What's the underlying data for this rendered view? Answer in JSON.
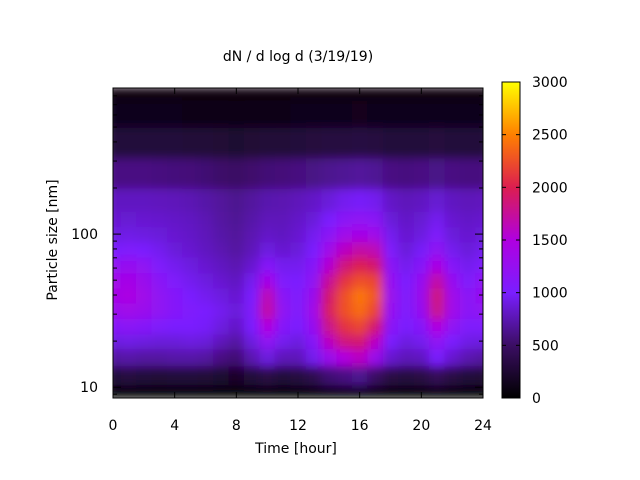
{
  "chart_data": {
    "type": "heatmap",
    "title": "dN / d log d (3/19/19)",
    "xlabel": "Time [hour]",
    "ylabel": "Particle size [nm]",
    "xlim": [
      0,
      24
    ],
    "ylim": [
      8.5,
      900
    ],
    "y_scale": "log",
    "x_ticks": [
      "0",
      "4",
      "8",
      "12",
      "16",
      "20",
      "24"
    ],
    "y_ticks": [
      "10",
      "100"
    ],
    "colorbar": {
      "range": [
        0,
        3000
      ],
      "ticks": [
        "0",
        "500",
        "1000",
        "1500",
        "2000",
        "2500",
        "3000"
      ],
      "palette": [
        "#000000",
        "#3b0e63",
        "#7a1eff",
        "#b000e0",
        "#dc1e50",
        "#ff8000",
        "#ffff00"
      ]
    },
    "x_hours": [
      0,
      1,
      2,
      3,
      4,
      5,
      6,
      7,
      8,
      9,
      10,
      11,
      12,
      13,
      14,
      15,
      16,
      17,
      18,
      19,
      20,
      21,
      22,
      23,
      24
    ],
    "size_bins_nm": [
      9,
      12,
      16,
      20,
      25,
      32,
      40,
      50,
      63,
      80,
      100,
      126,
      160,
      250,
      400,
      630,
      900
    ],
    "values": [
      [
        0,
        0,
        0,
        0,
        0,
        0,
        0,
        0,
        0,
        0,
        0,
        0,
        0,
        0,
        0,
        0,
        0,
        0,
        0,
        0,
        0,
        0,
        0,
        0,
        0
      ],
      [
        300,
        320,
        300,
        280,
        300,
        300,
        280,
        250,
        220,
        300,
        350,
        300,
        320,
        400,
        550,
        600,
        650,
        500,
        350,
        320,
        350,
        450,
        350,
        300,
        280
      ],
      [
        700,
        720,
        700,
        700,
        720,
        720,
        700,
        600,
        550,
        750,
        900,
        780,
        780,
        950,
        1300,
        1500,
        1600,
        1300,
        850,
        780,
        800,
        1000,
        850,
        750,
        700
      ],
      [
        900,
        920,
        900,
        880,
        880,
        900,
        880,
        780,
        700,
        900,
        1200,
        950,
        900,
        1100,
        1600,
        1850,
        1900,
        1600,
        1000,
        900,
        950,
        1200,
        1000,
        920,
        900
      ],
      [
        1100,
        1150,
        1100,
        1050,
        1000,
        1000,
        980,
        900,
        820,
        1000,
        1500,
        1100,
        1000,
        1250,
        1800,
        2100,
        2200,
        1900,
        1150,
        1000,
        1100,
        1500,
        1200,
        1050,
        1050
      ],
      [
        1300,
        1350,
        1300,
        1200,
        1100,
        1050,
        1000,
        950,
        880,
        1050,
        1700,
        1200,
        1050,
        1350,
        1950,
        2250,
        2400,
        2200,
        1250,
        1050,
        1250,
        1800,
        1350,
        1150,
        1200
      ],
      [
        1400,
        1450,
        1350,
        1200,
        1100,
        1000,
        950,
        900,
        850,
        1000,
        1650,
        1150,
        1050,
        1300,
        1900,
        2250,
        2450,
        2300,
        1300,
        1050,
        1300,
        1850,
        1350,
        1150,
        1250
      ],
      [
        1350,
        1400,
        1300,
        1150,
        1050,
        950,
        900,
        850,
        800,
        950,
        1400,
        1050,
        1000,
        1200,
        1750,
        2100,
        2250,
        2200,
        1250,
        1000,
        1250,
        1700,
        1250,
        1050,
        1200
      ],
      [
        1200,
        1250,
        1200,
        1050,
        950,
        900,
        850,
        800,
        750,
        850,
        1100,
        950,
        950,
        1100,
        1550,
        1850,
        2000,
        1900,
        1150,
        950,
        1100,
        1450,
        1100,
        950,
        1050
      ],
      [
        1000,
        1050,
        1000,
        950,
        880,
        850,
        800,
        750,
        700,
        780,
        900,
        850,
        880,
        1000,
        1350,
        1600,
        1700,
        1650,
        1050,
        880,
        980,
        1200,
        950,
        880,
        950
      ],
      [
        900,
        920,
        900,
        880,
        850,
        820,
        780,
        720,
        680,
        750,
        820,
        800,
        850,
        950,
        1150,
        1350,
        1400,
        1350,
        950,
        850,
        900,
        1050,
        880,
        850,
        880
      ],
      [
        850,
        860,
        850,
        840,
        820,
        800,
        760,
        700,
        660,
        720,
        780,
        780,
        820,
        880,
        1000,
        1150,
        1200,
        1150,
        880,
        820,
        860,
        950,
        850,
        820,
        840
      ],
      [
        800,
        800,
        800,
        790,
        780,
        760,
        720,
        680,
        640,
        690,
        740,
        750,
        780,
        820,
        880,
        950,
        980,
        950,
        820,
        780,
        800,
        860,
        800,
        780,
        790
      ],
      [
        600,
        600,
        600,
        590,
        580,
        570,
        550,
        520,
        500,
        530,
        560,
        570,
        590,
        610,
        640,
        660,
        680,
        660,
        600,
        590,
        600,
        620,
        600,
        590,
        590
      ],
      [
        300,
        300,
        300,
        300,
        300,
        290,
        280,
        270,
        260,
        270,
        280,
        290,
        300,
        310,
        320,
        330,
        340,
        330,
        300,
        300,
        300,
        310,
        300,
        300,
        300
      ],
      [
        130,
        130,
        130,
        130,
        130,
        125,
        120,
        115,
        110,
        115,
        120,
        125,
        130,
        135,
        140,
        145,
        150,
        145,
        130,
        130,
        130,
        135,
        130,
        130,
        130
      ],
      [
        70,
        70,
        70,
        70,
        70,
        68,
        66,
        64,
        62,
        64,
        66,
        68,
        70,
        72,
        74,
        76,
        78,
        76,
        70,
        70,
        70,
        72,
        70,
        70,
        70
      ]
    ]
  }
}
